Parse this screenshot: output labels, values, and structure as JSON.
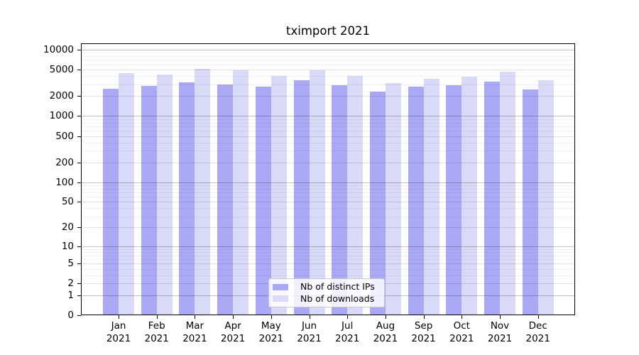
{
  "title": "tximport 2021",
  "chart_data": {
    "type": "bar",
    "title": "tximport 2021",
    "categories": [
      "Jan 2021",
      "Feb 2021",
      "Mar 2021",
      "Apr 2021",
      "May 2021",
      "Jun 2021",
      "Jul 2021",
      "Aug 2021",
      "Sep 2021",
      "Oct 2021",
      "Nov 2021",
      "Dec 2021"
    ],
    "series": [
      {
        "name": "Nb of distinct IPs",
        "color": "#a9a9f6",
        "values": [
          2580,
          2830,
          3200,
          2970,
          2780,
          3450,
          2950,
          2340,
          2810,
          2930,
          3300,
          2520
        ]
      },
      {
        "name": "Nb of downloads",
        "color": "#d9d9f8",
        "values": [
          4400,
          4230,
          5100,
          4880,
          4050,
          4900,
          4000,
          3180,
          3650,
          3950,
          4680,
          3500
        ]
      }
    ],
    "yscale": "log10(value+1)",
    "yticks": [
      0,
      1,
      2,
      5,
      10,
      20,
      50,
      100,
      200,
      500,
      1000,
      2000,
      5000,
      10000
    ],
    "ylim": [
      0,
      12500
    ],
    "xlabel": "",
    "ylabel": "",
    "grid": true,
    "legend_position": "lower center",
    "colors": {
      "distinct_ips_bar": "#a9a9f6",
      "downloads_bar": "#d9d9f8",
      "axis": "#000000",
      "grid_major": "#c2c2c2",
      "grid_mid": "#e2e2e2",
      "grid_minor": "#f1f1f1",
      "legend_border": "#c9c9c9"
    }
  }
}
